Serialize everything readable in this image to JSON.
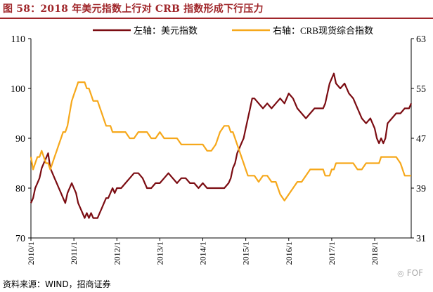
{
  "header": {
    "title": "图 58：2018 年美元指数上行对 CRB 指数形成下行压力"
  },
  "footer": {
    "source": "资料来源：WIND，招商证券",
    "watermark": "FOF",
    "watermark_icon": "wechat-icon"
  },
  "colors": {
    "left_series": "#7b0c12",
    "right_series": "#f6a81b",
    "title": "#a0262a"
  },
  "chart_data": {
    "type": "line",
    "title": "2018 年美元指数上行对 CRB 指数形成下行压力",
    "legend_position": "top",
    "x_tick_labels": [
      "2010/1",
      "2011/1",
      "2012/1",
      "2013/1",
      "2014/1",
      "2015/1",
      "2016/1",
      "2017/1",
      "2018/1"
    ],
    "x_range": [
      2010.0,
      2018.85
    ],
    "left_axis": {
      "ticks": [
        70,
        80,
        90,
        100,
        110
      ],
      "ylim": [
        70,
        110
      ]
    },
    "right_axis": {
      "ticks": [
        31,
        39,
        47,
        55,
        63
      ],
      "ylim": [
        31,
        63
      ]
    },
    "series": [
      {
        "name": "左轴：美元指数",
        "axis": "left",
        "color": "#7b0c12",
        "x": [
          2010.0,
          2010.05,
          2010.1,
          2010.15,
          2010.2,
          2010.25,
          2010.3,
          2010.35,
          2010.4,
          2010.45,
          2010.5,
          2010.55,
          2010.6,
          2010.65,
          2010.7,
          2010.75,
          2010.8,
          2010.85,
          2010.9,
          2010.95,
          2011.0,
          2011.05,
          2011.1,
          2011.15,
          2011.2,
          2011.25,
          2011.3,
          2011.35,
          2011.4,
          2011.45,
          2011.5,
          2011.55,
          2011.6,
          2011.65,
          2011.7,
          2011.75,
          2011.8,
          2011.85,
          2011.9,
          2011.95,
          2012.0,
          2012.1,
          2012.2,
          2012.3,
          2012.4,
          2012.5,
          2012.6,
          2012.7,
          2012.8,
          2012.9,
          2013.0,
          2013.1,
          2013.2,
          2013.3,
          2013.4,
          2013.5,
          2013.6,
          2013.7,
          2013.8,
          2013.9,
          2014.0,
          2014.1,
          2014.2,
          2014.3,
          2014.4,
          2014.5,
          2014.6,
          2014.65,
          2014.7,
          2014.75,
          2014.8,
          2014.85,
          2014.9,
          2014.95,
          2015.0,
          2015.05,
          2015.1,
          2015.15,
          2015.2,
          2015.3,
          2015.4,
          2015.5,
          2015.6,
          2015.7,
          2015.8,
          2015.9,
          2016.0,
          2016.1,
          2016.2,
          2016.3,
          2016.4,
          2016.5,
          2016.6,
          2016.7,
          2016.8,
          2016.85,
          2016.9,
          2016.95,
          2017.0,
          2017.05,
          2017.1,
          2017.2,
          2017.3,
          2017.4,
          2017.5,
          2017.6,
          2017.7,
          2017.8,
          2017.9,
          2018.0,
          2018.05,
          2018.1,
          2018.15,
          2018.2,
          2018.25,
          2018.3,
          2018.4,
          2018.5,
          2018.6,
          2018.7,
          2018.8,
          2018.85
        ],
        "values": [
          77,
          78,
          80,
          81,
          82,
          84,
          85,
          86,
          87,
          84,
          83,
          82,
          81,
          80,
          79,
          78,
          77,
          79,
          80,
          81,
          80,
          79,
          77,
          76,
          75,
          74,
          75,
          74,
          75,
          74,
          74,
          74,
          75,
          76,
          77,
          78,
          78,
          79,
          80,
          79,
          80,
          80,
          81,
          82,
          83,
          83,
          82,
          80,
          80,
          81,
          81,
          82,
          83,
          82,
          81,
          82,
          82,
          81,
          81,
          80,
          81,
          80,
          80,
          80,
          80,
          80,
          81,
          82,
          84,
          85,
          87,
          88,
          89,
          90,
          92,
          94,
          96,
          98,
          98,
          97,
          96,
          97,
          96,
          97,
          98,
          97,
          99,
          98,
          96,
          95,
          94,
          95,
          96,
          96,
          96,
          97,
          99,
          101,
          102,
          103,
          101,
          100,
          101,
          99,
          98,
          96,
          94,
          93,
          94,
          92,
          90,
          89,
          90,
          89,
          90,
          93,
          94,
          95,
          95,
          96,
          96,
          97
        ]
      },
      {
        "name": "右轴：CRB现货综合指数",
        "axis": "right",
        "color": "#f6a81b",
        "x": [
          2010.0,
          2010.05,
          2010.1,
          2010.15,
          2010.2,
          2010.25,
          2010.3,
          2010.35,
          2010.4,
          2010.45,
          2010.5,
          2010.55,
          2010.6,
          2010.65,
          2010.7,
          2010.75,
          2010.8,
          2010.85,
          2010.9,
          2010.95,
          2011.0,
          2011.05,
          2011.1,
          2011.15,
          2011.2,
          2011.25,
          2011.3,
          2011.35,
          2011.4,
          2011.45,
          2011.5,
          2011.55,
          2011.6,
          2011.65,
          2011.7,
          2011.75,
          2011.8,
          2011.85,
          2011.9,
          2011.95,
          2012.0,
          2012.1,
          2012.2,
          2012.3,
          2012.4,
          2012.5,
          2012.6,
          2012.7,
          2012.8,
          2012.9,
          2013.0,
          2013.1,
          2013.2,
          2013.3,
          2013.4,
          2013.5,
          2013.6,
          2013.7,
          2013.8,
          2013.9,
          2014.0,
          2014.1,
          2014.2,
          2014.3,
          2014.4,
          2014.5,
          2014.6,
          2014.65,
          2014.7,
          2014.75,
          2014.8,
          2014.85,
          2014.9,
          2014.95,
          2015.0,
          2015.05,
          2015.1,
          2015.15,
          2015.2,
          2015.3,
          2015.4,
          2015.5,
          2015.6,
          2015.7,
          2015.8,
          2015.9,
          2016.0,
          2016.1,
          2016.2,
          2016.3,
          2016.4,
          2016.5,
          2016.6,
          2016.7,
          2016.8,
          2016.85,
          2016.9,
          2016.95,
          2017.0,
          2017.05,
          2017.1,
          2017.2,
          2017.3,
          2017.4,
          2017.5,
          2017.6,
          2017.7,
          2017.8,
          2017.9,
          2018.0,
          2018.05,
          2018.1,
          2018.15,
          2018.2,
          2018.25,
          2018.3,
          2018.4,
          2018.5,
          2018.6,
          2018.7,
          2018.8,
          2018.85
        ],
        "values": [
          44,
          42,
          43,
          44,
          44,
          45,
          44,
          43,
          43,
          42,
          43,
          44,
          45,
          46,
          47,
          48,
          48,
          49,
          51,
          53,
          54,
          55,
          56,
          56,
          56,
          56,
          55,
          55,
          54,
          53,
          53,
          53,
          52,
          51,
          50,
          49,
          49,
          49,
          48,
          48,
          48,
          48,
          48,
          47,
          47,
          48,
          48,
          48,
          47,
          47,
          48,
          47,
          47,
          47,
          47,
          46,
          46,
          46,
          46,
          46,
          46,
          45,
          45,
          46,
          48,
          49,
          49,
          48,
          48,
          47,
          46,
          45,
          44,
          43,
          42,
          41,
          41,
          41,
          41,
          40,
          41,
          41,
          40,
          40,
          38,
          37,
          38,
          39,
          40,
          40,
          41,
          42,
          42,
          42,
          42,
          41,
          41,
          41,
          42,
          42,
          43,
          43,
          43,
          43,
          43,
          42,
          42,
          43,
          43,
          43,
          43,
          43,
          44,
          44,
          44,
          44,
          44,
          44,
          43,
          41,
          41,
          41
        ]
      }
    ]
  }
}
